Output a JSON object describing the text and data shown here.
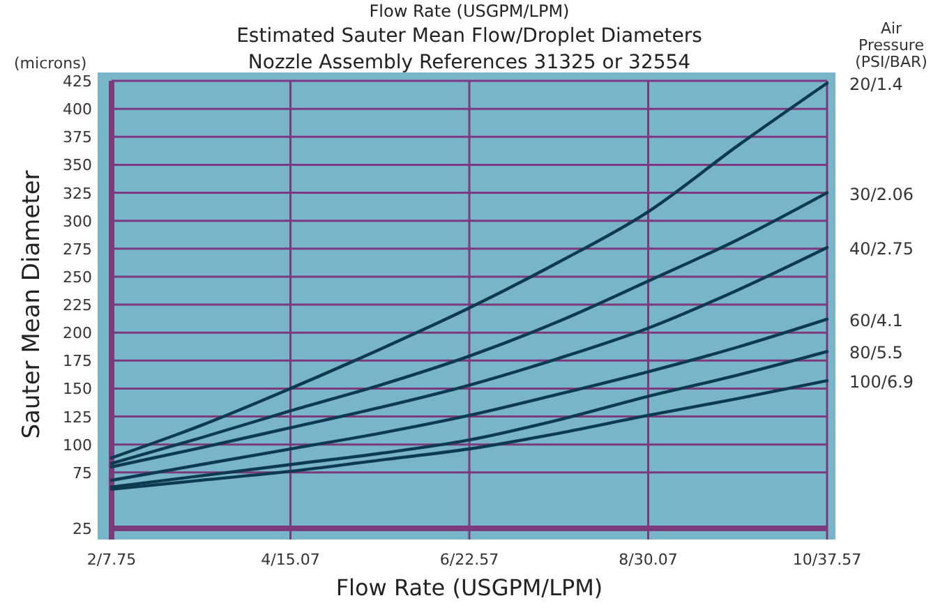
{
  "chart_data": {
    "type": "line",
    "title": "Estimated Sauter Mean Flow/Droplet Diameters",
    "subtitle": "Nozzle Assembly References 31325 or 32554",
    "xlabel": "Flow Rate (USGPM/LPM)",
    "ylabel": "Sauter Mean Diameter",
    "legend_title": "Air Pressure (PSI/BAR)",
    "annotations": [
      "Flow Rate (USGPM/LPM)",
      "(microns)"
    ],
    "categories": [
      "2/7.75",
      null,
      "4/15.07",
      null,
      "6/22.57",
      null,
      "8/30.07",
      null,
      "10/37.57"
    ],
    "ylim": [
      25,
      425
    ],
    "yticks": [
      25,
      75,
      100,
      125,
      150,
      175,
      200,
      225,
      250,
      275,
      300,
      325,
      350,
      375,
      400,
      425
    ],
    "grid": true,
    "legend": "right",
    "marker": "none",
    "line_style": "solid",
    "series": [
      {
        "name": "20/1.4",
        "color": "#0d3a4e",
        "values": [
          88,
          117,
          150,
          185,
          222,
          263,
          308,
          367,
          423
        ]
      },
      {
        "name": "30/2.06",
        "color": "#0d3a4e",
        "values": [
          83,
          106,
          130,
          153,
          179,
          210,
          246,
          283,
          325
        ]
      },
      {
        "name": "40/2.75",
        "color": "#0d3a4e",
        "values": [
          80,
          97,
          115,
          133,
          153,
          177,
          204,
          238,
          276
        ]
      },
      {
        "name": "60/4.1",
        "color": "#0d3a4e",
        "values": [
          68,
          82,
          96,
          110,
          126,
          145,
          165,
          187,
          212
        ]
      },
      {
        "name": "80/5.5",
        "color": "#0d3a4e",
        "values": [
          62,
          72,
          82,
          92,
          104,
          122,
          143,
          162,
          183
        ]
      },
      {
        "name": "100/6.9",
        "color": "#0d3a4e",
        "values": [
          60,
          68,
          76,
          86,
          96,
          110,
          126,
          141,
          157
        ]
      }
    ]
  }
}
